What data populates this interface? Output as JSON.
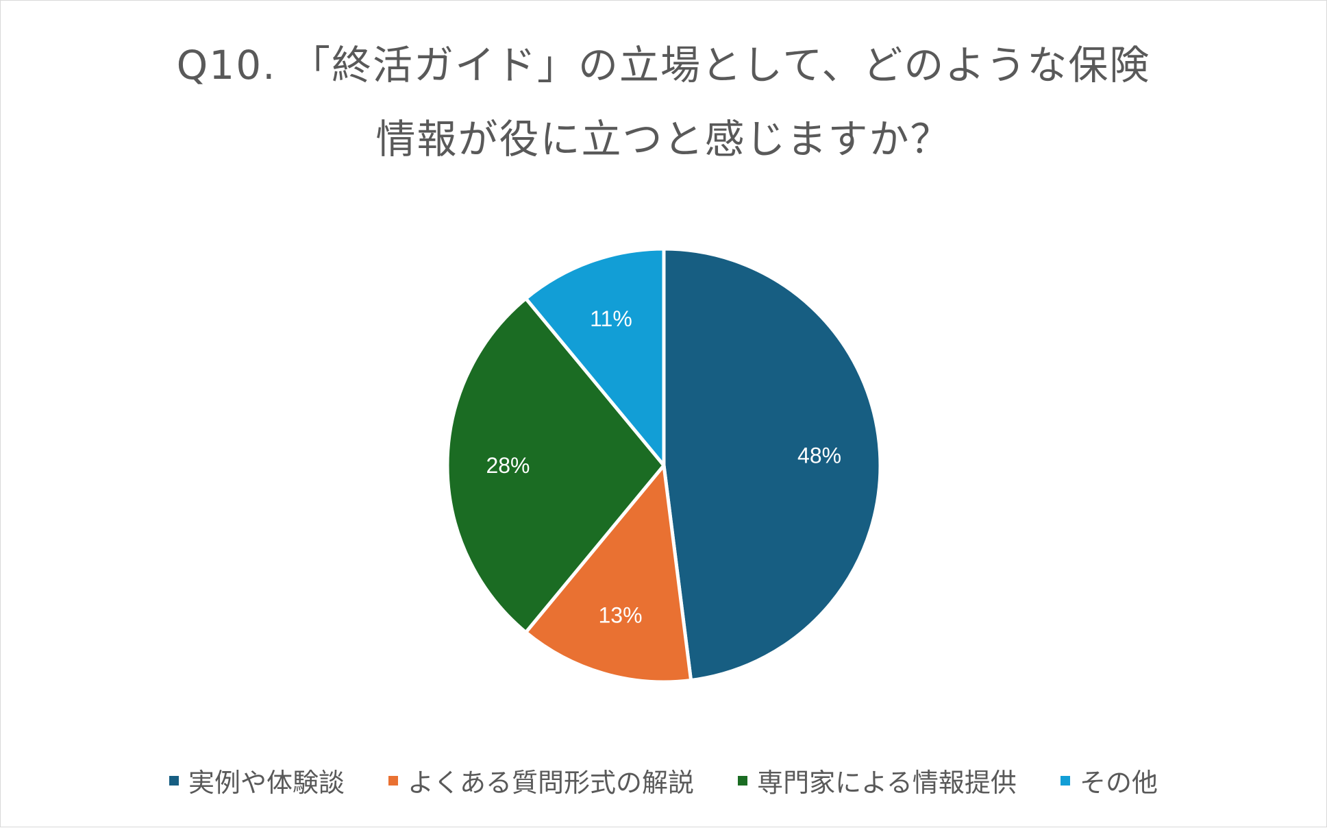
{
  "chart_data": {
    "type": "pie",
    "title": "Q10. 「終活ガイド」の立場として、どのような保険 情報が役に立つと感じますか？",
    "title_lines": [
      "Q10. 「終活ガイド」の立場として、どのような保険",
      "情報が役に立つと感じますか？"
    ],
    "categories": [
      "実例や体験談",
      "よくある質問形式の解説",
      "専門家による情報提供",
      "その他"
    ],
    "values": [
      48,
      13,
      28,
      11
    ],
    "data_labels": [
      "48%",
      "13%",
      "28%",
      "11%"
    ],
    "unit": "%",
    "colors": [
      "#175E82",
      "#E97132",
      "#1B6C23",
      "#129ED6"
    ],
    "legend_position": "bottom",
    "start_angle": "12 o'clock",
    "direction": "clockwise"
  }
}
